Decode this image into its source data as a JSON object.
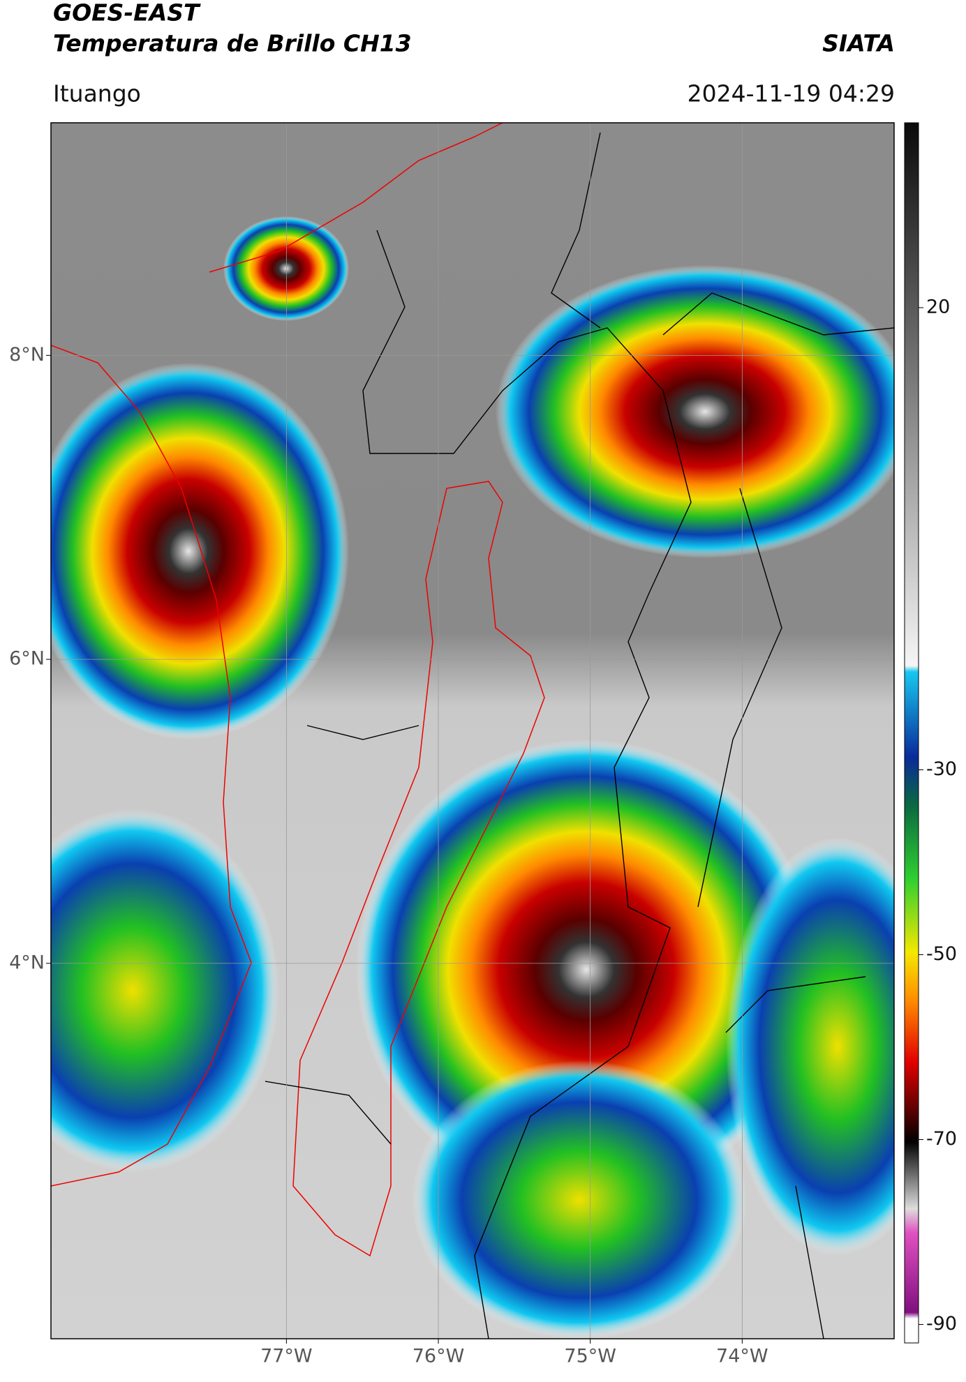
{
  "header": {
    "title_line1": "GOES-EAST",
    "title_line2": "Temperatura de Brillo CH13",
    "brand": "SIATA",
    "location": "Ituango",
    "timestamp": "2024-11-19 04:29"
  },
  "map": {
    "latlim": [
      1.53,
      9.53
    ],
    "lonlim": [
      -78.55,
      -73.0
    ],
    "grid": true,
    "lat_ticks": [
      {
        "value": 8,
        "label": "8°N"
      },
      {
        "value": 6,
        "label": "6°N"
      },
      {
        "value": 4,
        "label": "4°N"
      }
    ],
    "lon_ticks": [
      {
        "value": -77,
        "label": "77°W"
      },
      {
        "value": -76,
        "label": "76°W"
      },
      {
        "value": -75,
        "label": "75°W"
      },
      {
        "value": -74,
        "label": "74°W"
      }
    ]
  },
  "colorbar": {
    "lim": [
      -92,
      40
    ],
    "ticks": [
      20,
      -30,
      -50,
      -70,
      -90
    ]
  }
}
